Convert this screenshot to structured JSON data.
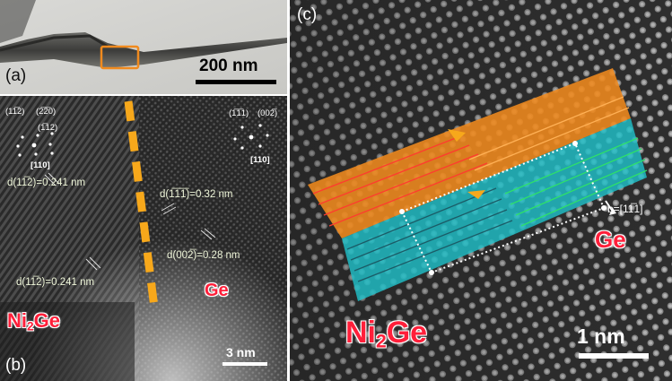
{
  "panel_a": {
    "label": "(a)",
    "scale_bar": "200 nm"
  },
  "panel_b": {
    "label": "(b)",
    "scale_bar": "3 nm",
    "phase_left_base": "Ni",
    "phase_left_sub": "2",
    "phase_left_tail": "Ge",
    "phase_right": "Ge",
    "d_spacings": [
      "d(11̅2)=0.241 nm",
      "d(1̅1̅1̅)=0.32 nm",
      "d(002̅)=0.28 nm",
      "d(11̅2)=0.241 nm"
    ],
    "diffraction_left": {
      "spots": [
        "(11̅2)",
        "(2̅2̅0)",
        "(1̅12)"
      ],
      "zone_axis": "[110]"
    },
    "diffraction_right": {
      "spots": [
        "(1̅1̅1)",
        "(002̅)"
      ],
      "zone_axis": "[110]"
    }
  },
  "panel_c": {
    "label": "(c)",
    "scale_bar": "1 nm",
    "phase_left_base": "Ni",
    "phase_left_sub": "2",
    "phase_left_tail": "Ge",
    "phase_right": "Ge",
    "burgers_vector": "b=[11̅1]"
  },
  "colors": {
    "orange_band": "#f08a1e",
    "cyan_band": "#20c0c8",
    "phase_text": "#ff1f3a",
    "interface_marker": "#f7a81b"
  }
}
